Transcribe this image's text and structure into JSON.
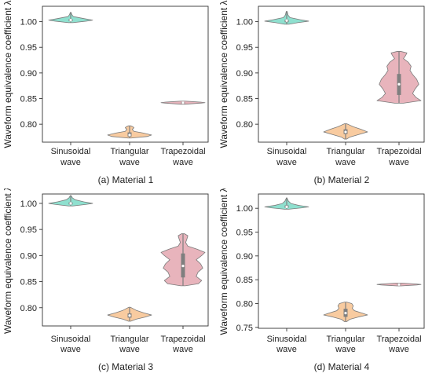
{
  "colors": {
    "sinusoidal": "#8fe0cf",
    "triangular": "#f8cba0",
    "trapezoidal": "#e8b4bc",
    "outline": "#7a7a7a",
    "box": "#7f7f7f",
    "median": "#ffffff"
  },
  "chart_data": [
    {
      "type": "violin",
      "caption": "(a) Material 1",
      "ylabel": "Waveform equivalence coefficient λ",
      "categories": [
        [
          "Sinusoidal",
          "wave"
        ],
        [
          "Triangular",
          "wave"
        ],
        [
          "Trapezoidal",
          "wave"
        ]
      ],
      "ylim": [
        0.765,
        1.03
      ],
      "yticks": [
        0.8,
        0.85,
        0.9,
        0.95,
        1.0
      ],
      "ytick_labels": [
        "0.80",
        "0.85",
        "0.90",
        "0.95",
        "1.00"
      ],
      "violins": [
        {
          "category": "Sinusoidal wave",
          "min": 0.998,
          "max": 1.018,
          "q1": 1.001,
          "q3": 1.005,
          "median": 1.003,
          "profile": [
            [
              0.998,
              0.1
            ],
            [
              1.001,
              0.7
            ],
            [
              1.003,
              1.0
            ],
            [
              1.006,
              0.6
            ],
            [
              1.01,
              0.12
            ],
            [
              1.014,
              0.05
            ],
            [
              1.018,
              0.02
            ]
          ]
        },
        {
          "category": "Triangular wave",
          "min": 0.773,
          "max": 0.797,
          "q1": 0.776,
          "q3": 0.784,
          "median": 0.779,
          "profile": [
            [
              0.773,
              0.08
            ],
            [
              0.776,
              0.8
            ],
            [
              0.779,
              1.0
            ],
            [
              0.783,
              0.6
            ],
            [
              0.786,
              0.2
            ],
            [
              0.79,
              0.12
            ],
            [
              0.793,
              0.2
            ],
            [
              0.795,
              0.15
            ],
            [
              0.797,
              0.05
            ]
          ]
        },
        {
          "category": "Trapezoidal wave",
          "min": 0.839,
          "max": 0.845,
          "q1": 0.841,
          "q3": 0.843,
          "median": 0.842,
          "profile": [
            [
              0.839,
              0.1
            ],
            [
              0.841,
              0.8
            ],
            [
              0.842,
              1.0
            ],
            [
              0.843,
              0.8
            ],
            [
              0.845,
              0.1
            ]
          ]
        }
      ]
    },
    {
      "type": "violin",
      "caption": "(b) Material 2",
      "ylabel": "Waveform equivalence coefficient λ",
      "categories": [
        [
          "Sinusoidal",
          "wave"
        ],
        [
          "Triangular",
          "wave"
        ],
        [
          "Trapezoidal",
          "wave"
        ]
      ],
      "ylim": [
        0.765,
        1.03
      ],
      "yticks": [
        0.8,
        0.85,
        0.9,
        0.95,
        1.0
      ],
      "ytick_labels": [
        "0.80",
        "0.85",
        "0.90",
        "0.95",
        "1.00"
      ],
      "violins": [
        {
          "category": "Sinusoidal wave",
          "min": 0.995,
          "max": 1.02,
          "q1": 0.999,
          "q3": 1.004,
          "median": 1.002,
          "profile": [
            [
              0.995,
              0.1
            ],
            [
              0.998,
              0.5
            ],
            [
              1.001,
              1.0
            ],
            [
              1.004,
              0.6
            ],
            [
              1.008,
              0.15
            ],
            [
              1.013,
              0.06
            ],
            [
              1.02,
              0.02
            ]
          ]
        },
        {
          "category": "Triangular wave",
          "min": 0.771,
          "max": 0.801,
          "q1": 0.781,
          "q3": 0.79,
          "median": 0.785,
          "profile": [
            [
              0.771,
              0.05
            ],
            [
              0.775,
              0.2
            ],
            [
              0.78,
              0.6
            ],
            [
              0.785,
              1.0
            ],
            [
              0.79,
              0.7
            ],
            [
              0.795,
              0.35
            ],
            [
              0.799,
              0.15
            ],
            [
              0.801,
              0.04
            ]
          ]
        },
        {
          "category": "Trapezoidal wave",
          "min": 0.841,
          "max": 0.942,
          "q1": 0.857,
          "q3": 0.898,
          "median": 0.878,
          "profile": [
            [
              0.841,
              0.2
            ],
            [
              0.846,
              1.0
            ],
            [
              0.852,
              0.78
            ],
            [
              0.86,
              0.62
            ],
            [
              0.868,
              0.72
            ],
            [
              0.878,
              0.9
            ],
            [
              0.888,
              0.8
            ],
            [
              0.897,
              0.62
            ],
            [
              0.905,
              0.5
            ],
            [
              0.913,
              0.55
            ],
            [
              0.921,
              0.42
            ],
            [
              0.928,
              0.2
            ],
            [
              0.934,
              0.3
            ],
            [
              0.939,
              0.36
            ],
            [
              0.942,
              0.08
            ]
          ]
        }
      ]
    },
    {
      "type": "violin",
      "caption": "(c) Material 3",
      "ylabel": "Waveform equivalence coefficient λ",
      "categories": [
        [
          "Sinusoidal",
          "wave"
        ],
        [
          "Triangular",
          "wave"
        ],
        [
          "Trapezoidal",
          "wave"
        ]
      ],
      "ylim": [
        0.765,
        1.018
      ],
      "yticks": [
        0.8,
        0.85,
        0.9,
        0.95,
        1.0
      ],
      "ytick_labels": [
        "0.80",
        "0.85",
        "0.90",
        "0.95",
        "1.00"
      ],
      "violins": [
        {
          "category": "Sinusoidal wave",
          "min": 0.995,
          "max": 1.015,
          "q1": 0.998,
          "q3": 1.002,
          "median": 1.0,
          "profile": [
            [
              0.995,
              0.1
            ],
            [
              0.998,
              0.7
            ],
            [
              1.0,
              1.0
            ],
            [
              1.003,
              0.6
            ],
            [
              1.007,
              0.2
            ],
            [
              1.011,
              0.07
            ],
            [
              1.015,
              0.02
            ]
          ]
        },
        {
          "category": "Triangular wave",
          "min": 0.774,
          "max": 0.801,
          "q1": 0.781,
          "q3": 0.789,
          "median": 0.785,
          "profile": [
            [
              0.774,
              0.05
            ],
            [
              0.778,
              0.3
            ],
            [
              0.782,
              0.7
            ],
            [
              0.786,
              1.0
            ],
            [
              0.79,
              0.65
            ],
            [
              0.795,
              0.3
            ],
            [
              0.799,
              0.12
            ],
            [
              0.801,
              0.03
            ]
          ]
        },
        {
          "category": "Trapezoidal wave",
          "min": 0.842,
          "max": 0.942,
          "q1": 0.858,
          "q3": 0.904,
          "median": 0.88,
          "profile": [
            [
              0.842,
              0.1
            ],
            [
              0.846,
              0.7
            ],
            [
              0.852,
              0.85
            ],
            [
              0.86,
              0.6
            ],
            [
              0.868,
              0.68
            ],
            [
              0.876,
              0.9
            ],
            [
              0.884,
              0.8
            ],
            [
              0.892,
              0.6
            ],
            [
              0.9,
              0.85
            ],
            [
              0.906,
              1.0
            ],
            [
              0.912,
              0.65
            ],
            [
              0.918,
              0.22
            ],
            [
              0.925,
              0.12
            ],
            [
              0.932,
              0.18
            ],
            [
              0.938,
              0.22
            ],
            [
              0.942,
              0.06
            ]
          ]
        }
      ]
    },
    {
      "type": "violin",
      "caption": "(d) Material 4",
      "ylabel": "Waveform equivalence coefficient λ",
      "categories": [
        [
          "Sinusoidal",
          "wave"
        ],
        [
          "Triangular",
          "wave"
        ],
        [
          "Trapezoidal",
          "wave"
        ]
      ],
      "ylim": [
        0.748,
        1.03
      ],
      "yticks": [
        0.75,
        0.8,
        0.85,
        0.9,
        0.95,
        1.0
      ],
      "ytick_labels": [
        "0.75",
        "0.80",
        "0.85",
        "0.90",
        "0.95",
        "1.00"
      ],
      "violins": [
        {
          "category": "Sinusoidal wave",
          "min": 0.998,
          "max": 1.022,
          "q1": 1.001,
          "q3": 1.006,
          "median": 1.003,
          "profile": [
            [
              0.998,
              0.1
            ],
            [
              1.001,
              0.7
            ],
            [
              1.003,
              1.0
            ],
            [
              1.006,
              0.55
            ],
            [
              1.01,
              0.2
            ],
            [
              1.015,
              0.08
            ],
            [
              1.02,
              0.03
            ],
            [
              1.022,
              0.01
            ]
          ]
        },
        {
          "category": "Triangular wave",
          "min": 0.762,
          "max": 0.803,
          "q1": 0.772,
          "q3": 0.789,
          "median": 0.78,
          "profile": [
            [
              0.762,
              0.05
            ],
            [
              0.767,
              0.2
            ],
            [
              0.772,
              0.6
            ],
            [
              0.776,
              1.0
            ],
            [
              0.78,
              0.75
            ],
            [
              0.785,
              0.4
            ],
            [
              0.79,
              0.3
            ],
            [
              0.795,
              0.35
            ],
            [
              0.8,
              0.28
            ],
            [
              0.803,
              0.05
            ]
          ]
        },
        {
          "category": "Trapezoidal wave",
          "min": 0.837,
          "max": 0.843,
          "q1": 0.839,
          "q3": 0.841,
          "median": 0.84,
          "profile": [
            [
              0.837,
              0.1
            ],
            [
              0.839,
              0.8
            ],
            [
              0.84,
              1.0
            ],
            [
              0.841,
              0.8
            ],
            [
              0.843,
              0.1
            ]
          ]
        }
      ]
    }
  ]
}
